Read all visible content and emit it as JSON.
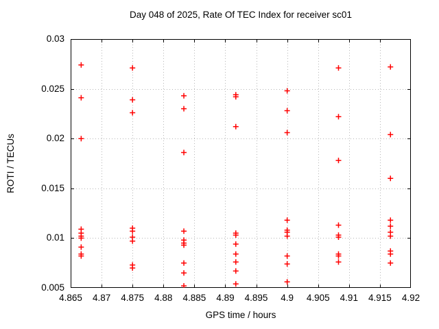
{
  "chart": {
    "title": "Day 048 of 2025, Rate Of TEC Index for receiver sc01",
    "xlabel": "GPS time / hours",
    "ylabel": "ROTI / TECUs"
  },
  "chart_data": {
    "type": "scatter",
    "title": "Day 048 of 2025, Rate Of TEC Index for receiver sc01",
    "xlabel": "GPS time / hours",
    "ylabel": "ROTI / TECUs",
    "xlim": [
      4.865,
      4.92
    ],
    "ylim": [
      0.005,
      0.03
    ],
    "x_ticks": [
      4.865,
      4.87,
      4.875,
      4.88,
      4.885,
      4.89,
      4.895,
      4.9,
      4.905,
      4.91,
      4.915,
      4.92
    ],
    "x_tick_labels": [
      "4.865",
      "4.87",
      "4.875",
      "4.88",
      "4.885",
      "4.89",
      "4.895",
      "4.9",
      "4.905",
      "4.91",
      "4.915",
      "4.92"
    ],
    "y_ticks": [
      0.005,
      0.01,
      0.015,
      0.02,
      0.025,
      0.03
    ],
    "y_tick_labels": [
      "0.005",
      "0.01",
      "0.015",
      "0.02",
      "0.025",
      "0.03"
    ],
    "grid": true,
    "legend": "none",
    "marker": "plus",
    "marker_color": "#ff0000",
    "grid_color": "#b4b4b4",
    "axis_color": "#000000",
    "series": [
      {
        "name": "roti",
        "points": [
          [
            4.8667,
            0.0274
          ],
          [
            4.8667,
            0.0241
          ],
          [
            4.8667,
            0.02
          ],
          [
            4.8667,
            0.0109
          ],
          [
            4.8667,
            0.0105
          ],
          [
            4.8667,
            0.0102
          ],
          [
            4.8667,
            0.01
          ],
          [
            4.8667,
            0.0091
          ],
          [
            4.8667,
            0.0084
          ],
          [
            4.8667,
            0.0082
          ],
          [
            4.875,
            0.0271
          ],
          [
            4.875,
            0.0239
          ],
          [
            4.875,
            0.0226
          ],
          [
            4.875,
            0.011
          ],
          [
            4.875,
            0.0107
          ],
          [
            4.875,
            0.0101
          ],
          [
            4.875,
            0.0097
          ],
          [
            4.875,
            0.0073
          ],
          [
            4.875,
            0.007
          ],
          [
            4.8833,
            0.0243
          ],
          [
            4.8833,
            0.023
          ],
          [
            4.8833,
            0.0186
          ],
          [
            4.8833,
            0.0107
          ],
          [
            4.8833,
            0.0098
          ],
          [
            4.8833,
            0.0095
          ],
          [
            4.8833,
            0.0093
          ],
          [
            4.8833,
            0.0075
          ],
          [
            4.8833,
            0.0065
          ],
          [
            4.8833,
            0.0052
          ],
          [
            4.8917,
            0.0244
          ],
          [
            4.8917,
            0.0242
          ],
          [
            4.8917,
            0.0212
          ],
          [
            4.8917,
            0.0105
          ],
          [
            4.8917,
            0.0103
          ],
          [
            4.8917,
            0.0094
          ],
          [
            4.8917,
            0.0084
          ],
          [
            4.8917,
            0.0076
          ],
          [
            4.8917,
            0.0067
          ],
          [
            4.8917,
            0.0054
          ],
          [
            4.9,
            0.0248
          ],
          [
            4.9,
            0.0228
          ],
          [
            4.9,
            0.0206
          ],
          [
            4.9,
            0.0118
          ],
          [
            4.9,
            0.0108
          ],
          [
            4.9,
            0.0106
          ],
          [
            4.9,
            0.0102
          ],
          [
            4.9,
            0.0082
          ],
          [
            4.9,
            0.0074
          ],
          [
            4.9,
            0.0056
          ],
          [
            4.9083,
            0.0271
          ],
          [
            4.9083,
            0.0222
          ],
          [
            4.9083,
            0.0178
          ],
          [
            4.9083,
            0.0113
          ],
          [
            4.9083,
            0.0103
          ],
          [
            4.9083,
            0.0101
          ],
          [
            4.9083,
            0.0084
          ],
          [
            4.9083,
            0.0082
          ],
          [
            4.9083,
            0.0076
          ],
          [
            4.9167,
            0.0272
          ],
          [
            4.9167,
            0.0204
          ],
          [
            4.9167,
            0.016
          ],
          [
            4.9167,
            0.0118
          ],
          [
            4.9167,
            0.0112
          ],
          [
            4.9167,
            0.0106
          ],
          [
            4.9167,
            0.0102
          ],
          [
            4.9167,
            0.0087
          ],
          [
            4.9167,
            0.0084
          ],
          [
            4.9167,
            0.0075
          ]
        ]
      }
    ]
  }
}
